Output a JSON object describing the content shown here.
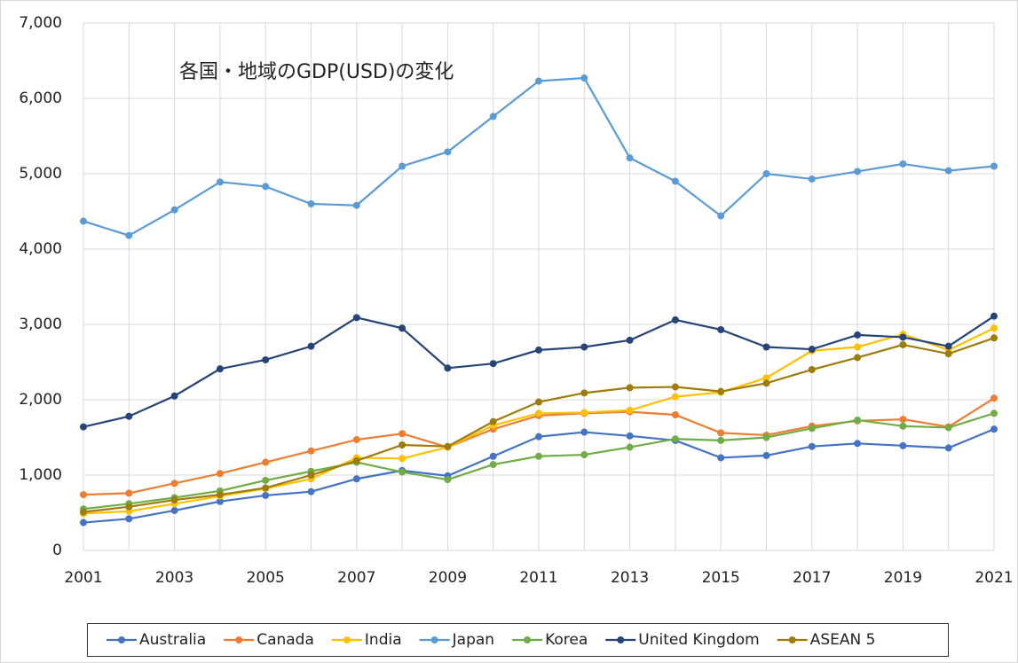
{
  "chart_data": {
    "type": "line",
    "title": "各国・地域のGDP(USD)の変化",
    "x": [
      2001,
      2002,
      2003,
      2004,
      2005,
      2006,
      2007,
      2008,
      2009,
      2010,
      2011,
      2012,
      2013,
      2014,
      2015,
      2016,
      2017,
      2018,
      2019,
      2020,
      2021
    ],
    "xlim": [
      2001,
      2021
    ],
    "xticks": [
      2001,
      2003,
      2005,
      2007,
      2009,
      2011,
      2013,
      2015,
      2017,
      2019,
      2021
    ],
    "ylim": [
      0,
      7000
    ],
    "yticks": [
      0,
      {
        "value": 1000,
        "label": "1,000"
      },
      {
        "value": 2000,
        "label": "2,000"
      },
      {
        "value": 3000,
        "label": "3,000"
      },
      {
        "value": 4000,
        "label": "4,000"
      },
      {
        "value": 5000,
        "label": "5,000"
      },
      {
        "value": 6000,
        "label": "6,000"
      },
      {
        "value": 7000,
        "label": "7,000"
      }
    ],
    "grid": true,
    "legend": "bottom",
    "series": [
      {
        "name": "Australia",
        "color": "#4472c4",
        "values": [
          370,
          420,
          530,
          650,
          730,
          780,
          950,
          1060,
          990,
          1250,
          1510,
          1570,
          1520,
          1460,
          1230,
          1260,
          1380,
          1420,
          1390,
          1360,
          1610
        ]
      },
      {
        "name": "Canada",
        "color": "#ed7d31",
        "values": [
          740,
          760,
          890,
          1020,
          1170,
          1320,
          1470,
          1550,
          1370,
          1610,
          1790,
          1820,
          1840,
          1800,
          1560,
          1530,
          1650,
          1720,
          1740,
          1640,
          2020
        ]
      },
      {
        "name": "India",
        "color": "#ffc000",
        "values": [
          490,
          520,
          620,
          720,
          820,
          950,
          1230,
          1220,
          1370,
          1660,
          1820,
          1830,
          1860,
          2040,
          2100,
          2290,
          2650,
          2700,
          2870,
          2660,
          2950
        ]
      },
      {
        "name": "Japan",
        "color": "#5b9bd5",
        "values": [
          4370,
          4180,
          4520,
          4890,
          4830,
          4600,
          4580,
          5100,
          5290,
          5760,
          6230,
          6270,
          5210,
          4900,
          4440,
          5000,
          4930,
          5030,
          5130,
          5040,
          5100
        ]
      },
      {
        "name": "Korea",
        "color": "#70ad47",
        "values": [
          550,
          620,
          700,
          790,
          930,
          1050,
          1170,
          1040,
          940,
          1140,
          1250,
          1270,
          1370,
          1480,
          1460,
          1500,
          1620,
          1730,
          1650,
          1630,
          1820
        ]
      },
      {
        "name": "United Kingdom",
        "color": "#264478",
        "values": [
          1640,
          1780,
          2050,
          2410,
          2530,
          2710,
          3090,
          2950,
          2420,
          2480,
          2660,
          2700,
          2790,
          3060,
          2930,
          2700,
          2670,
          2860,
          2830,
          2710,
          3110
        ]
      },
      {
        "name": "ASEAN 5",
        "color": "#9e7c0c",
        "values": [
          510,
          580,
          670,
          740,
          830,
          1000,
          1190,
          1400,
          1380,
          1710,
          1970,
          2090,
          2160,
          2170,
          2110,
          2220,
          2400,
          2560,
          2730,
          2610,
          2820
        ]
      }
    ]
  }
}
